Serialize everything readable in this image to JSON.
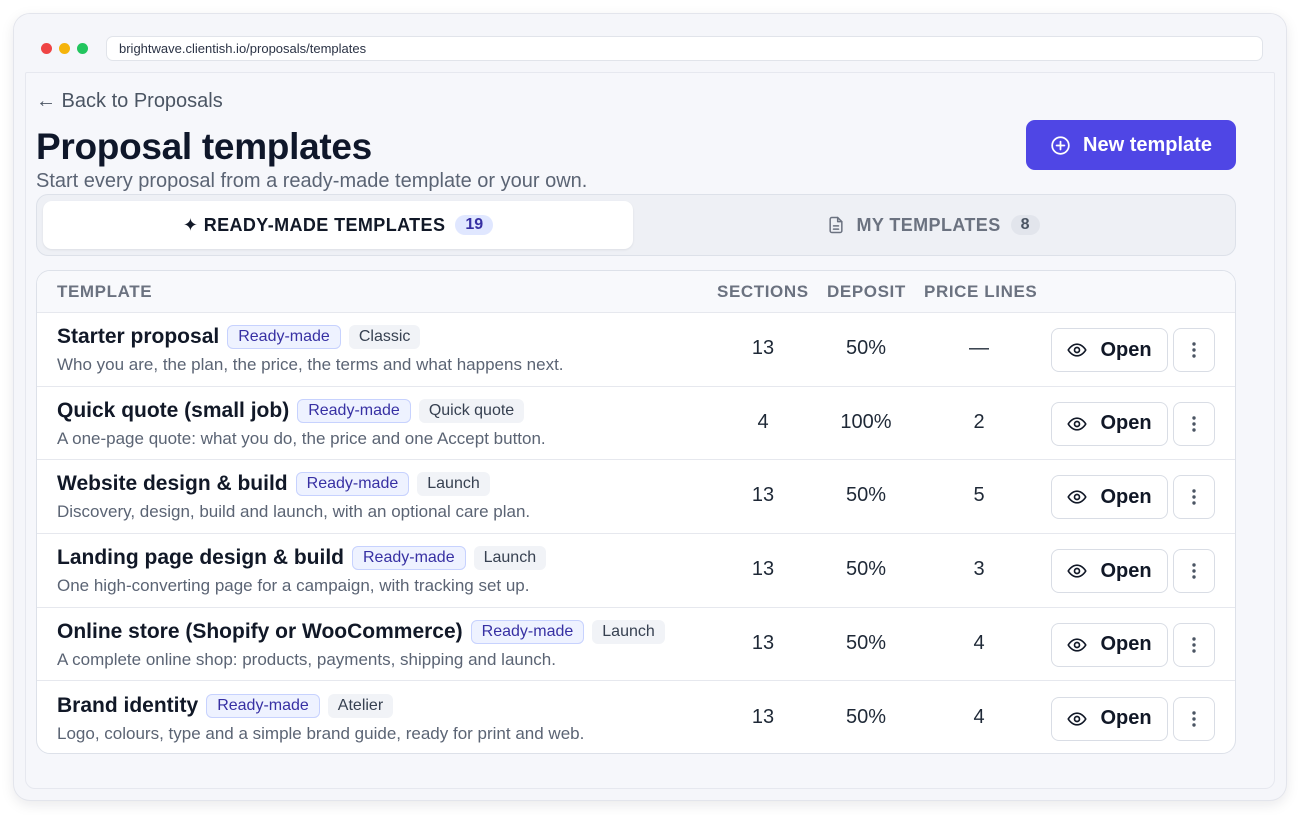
{
  "browser": {
    "url": "brightwave.clientish.io/proposals/templates",
    "dots": [
      "#ef4444",
      "#f59e0b",
      "#22c55e"
    ]
  },
  "page": {
    "back_link": "← Back to Proposals",
    "title": "Proposal templates",
    "subtitle": "Start every proposal from a ready-made template or your own.",
    "new_button": "New template",
    "accent": "#4f46e5"
  },
  "tabs": [
    {
      "label": "✦ READY-MADE TEMPLATES",
      "count": "19",
      "active": true
    },
    {
      "label": "MY TEMPLATES",
      "count": "8",
      "active": false
    }
  ],
  "table": {
    "headers": {
      "template": "TEMPLATE",
      "sections": "SECTIONS",
      "deposit": "DEPOSIT",
      "price_lines": "PRICE LINES"
    },
    "open_label": "Open",
    "rows": [
      {
        "name": "Starter proposal",
        "badge": "Ready-made",
        "style": "Classic",
        "description": "Who you are, the plan, the price, the terms and what happens next.",
        "sections": "13",
        "deposit": "50%",
        "price_lines": "—"
      },
      {
        "name": "Quick quote (small job)",
        "badge": "Ready-made",
        "style": "Quick quote",
        "description": "A one-page quote: what you do, the price and one Accept button.",
        "sections": "4",
        "deposit": "100%",
        "price_lines": "2"
      },
      {
        "name": "Website design & build",
        "badge": "Ready-made",
        "style": "Launch",
        "description": "Discovery, design, build and launch, with an optional care plan.",
        "sections": "13",
        "deposit": "50%",
        "price_lines": "5"
      },
      {
        "name": "Landing page design & build",
        "badge": "Ready-made",
        "style": "Launch",
        "description": "One high-converting page for a campaign, with tracking set up.",
        "sections": "13",
        "deposit": "50%",
        "price_lines": "3"
      },
      {
        "name": "Online store (Shopify or WooCommerce)",
        "badge": "Ready-made",
        "style": "Launch",
        "description": "A complete online shop: products, payments, shipping and launch.",
        "sections": "13",
        "deposit": "50%",
        "price_lines": "4"
      },
      {
        "name": "Brand identity",
        "badge": "Ready-made",
        "style": "Atelier",
        "description": "Logo, colours, type and a simple brand guide, ready for print and web.",
        "sections": "13",
        "deposit": "50%",
        "price_lines": "4"
      }
    ]
  }
}
